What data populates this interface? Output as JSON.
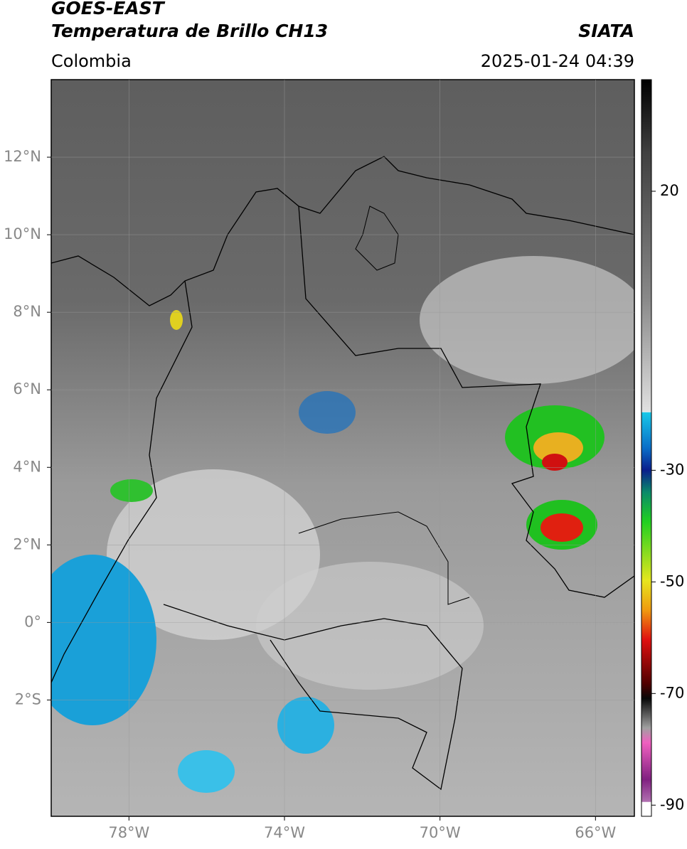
{
  "header": {
    "satellite": "GOES-EAST",
    "product": "Temperatura de Brillo CH13",
    "agency": "SIATA",
    "region": "Colombia",
    "datetime": "2025-01-24 04:39"
  },
  "map": {
    "xlim": [
      -80,
      -65
    ],
    "ylim": [
      -5,
      14
    ],
    "xticks": [
      {
        "value": -78,
        "label": "78°W"
      },
      {
        "value": -74,
        "label": "74°W"
      },
      {
        "value": -70,
        "label": "70°W"
      },
      {
        "value": -66,
        "label": "66°W"
      }
    ],
    "yticks": [
      {
        "value": 12,
        "label": "12°N"
      },
      {
        "value": 10,
        "label": "10°N"
      },
      {
        "value": 8,
        "label": "8°N"
      },
      {
        "value": 6,
        "label": "6°N"
      },
      {
        "value": 4,
        "label": "4°N"
      },
      {
        "value": 2,
        "label": "2°N"
      },
      {
        "value": 0,
        "label": "0°"
      },
      {
        "value": -2,
        "label": "2°S"
      }
    ],
    "grid": true
  },
  "colorbar": {
    "lim": [
      -92,
      40
    ],
    "ticks": [
      20,
      -30,
      -50,
      -70,
      -90
    ]
  }
}
